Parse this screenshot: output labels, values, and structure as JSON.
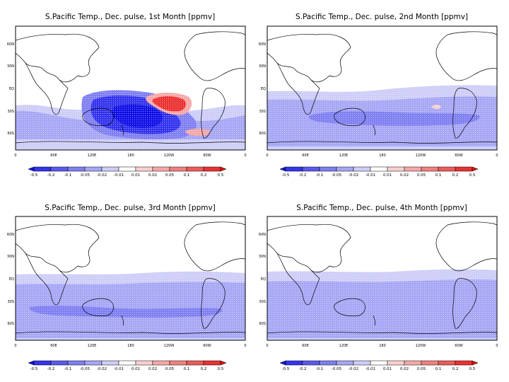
{
  "panels": [
    {
      "title": "S.Pacific Temp., Dec. pulse, 1st Month [ppmv]",
      "month": 1
    },
    {
      "title": "S.Pacific Temp., Dec. pulse, 2nd Month [ppmv]",
      "month": 2
    },
    {
      "title": "S.Pacific Temp., Dec. pulse, 3rd Month [ppmv]",
      "month": 3
    },
    {
      "title": "S.Pacific Temp., Dec. pulse, 4th Month [ppmv]",
      "month": 4
    }
  ],
  "lat_labels": [
    "60N",
    "30N",
    "EQ",
    "30S",
    "60S"
  ],
  "lon_labels": [
    "0",
    "60E",
    "120E",
    "180",
    "120W",
    "60W",
    "0"
  ],
  "colorbar": {
    "labels": [
      "-0.5",
      "-0.2",
      "-0.1",
      "-0.05",
      "-0.02",
      "-0.01",
      "0.01",
      "0.02",
      "0.05",
      "0.1",
      "0.2",
      "0.5"
    ],
    "colors": [
      "#1010e6",
      "#3333ee",
      "#5a5af0",
      "#7f7ff2",
      "#a6a6f5",
      "#cdcdf8",
      "#ffffff",
      "#f8d0d0",
      "#f5a8a8",
      "#f28080",
      "#ef5a5a",
      "#ec3030",
      "#e81010"
    ]
  }
}
